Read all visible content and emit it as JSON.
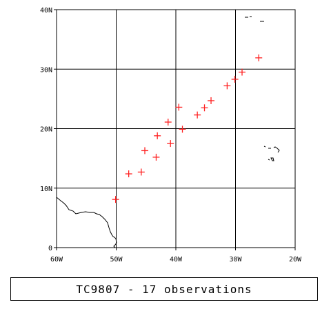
{
  "map": {
    "lon_range": [
      -60,
      -20
    ],
    "lat_range": [
      0,
      40
    ],
    "x_tick_labels": [
      "60W",
      "50W",
      "40W",
      "30W",
      "20W"
    ],
    "y_tick_labels": [
      "0",
      "10N",
      "20N",
      "30N",
      "40N"
    ],
    "grid": true,
    "marker_color": "#ff2020",
    "marker_symbol": "plus",
    "observations": [
      {
        "lon": -50.1,
        "lat": 8.1
      },
      {
        "lon": -47.9,
        "lat": 12.4
      },
      {
        "lon": -45.8,
        "lat": 12.7
      },
      {
        "lon": -45.2,
        "lat": 16.3
      },
      {
        "lon": -43.3,
        "lat": 15.2
      },
      {
        "lon": -43.1,
        "lat": 18.8
      },
      {
        "lon": -41.3,
        "lat": 21.1
      },
      {
        "lon": -40.9,
        "lat": 17.5
      },
      {
        "lon": -39.5,
        "lat": 23.6
      },
      {
        "lon": -38.9,
        "lat": 19.9
      },
      {
        "lon": -36.4,
        "lat": 22.3
      },
      {
        "lon": -35.2,
        "lat": 23.5
      },
      {
        "lon": -34.1,
        "lat": 24.7
      },
      {
        "lon": -31.4,
        "lat": 27.2
      },
      {
        "lon": -30.1,
        "lat": 28.3
      },
      {
        "lon": -28.9,
        "lat": 29.5
      },
      {
        "lon": -26.1,
        "lat": 31.9
      }
    ]
  },
  "caption": "TC9807 - 17 observations"
}
